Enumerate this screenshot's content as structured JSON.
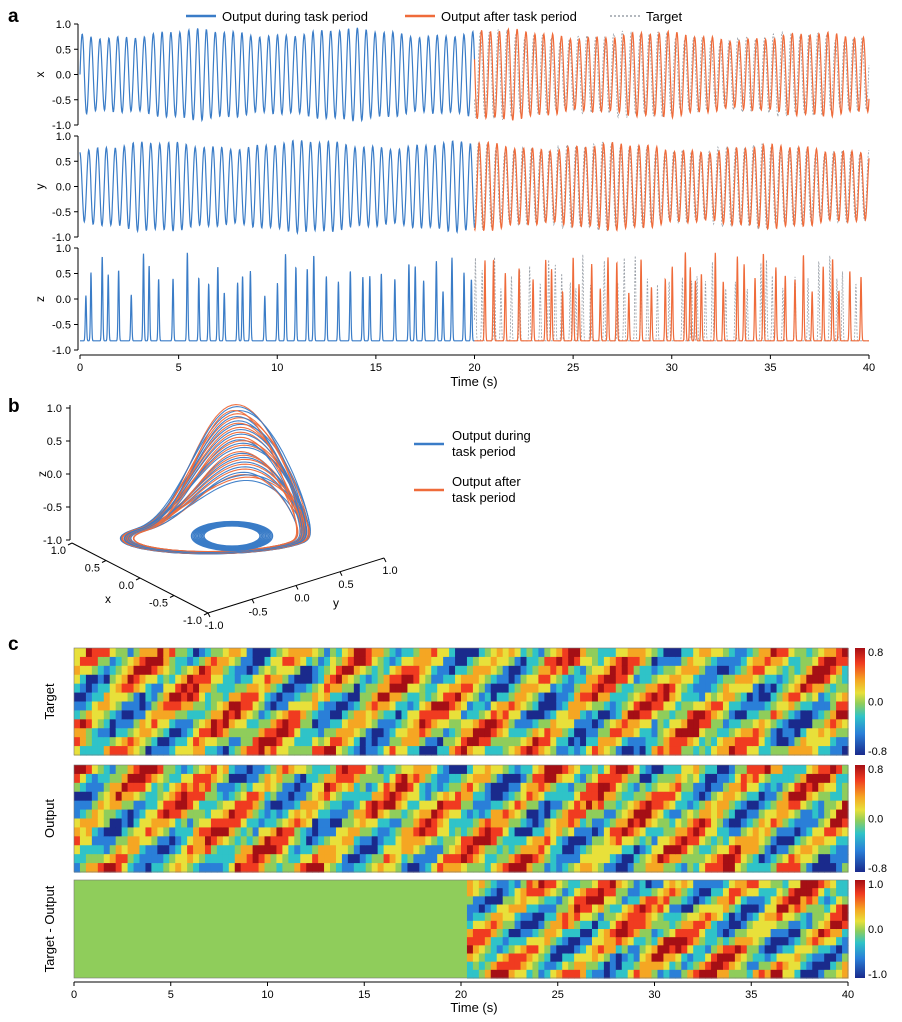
{
  "panels": {
    "a": "a",
    "b": "b",
    "c": "c"
  },
  "colors": {
    "during": "#3a7cc7",
    "after": "#ef6b3a",
    "target": "#9aa0a8",
    "flat": "#8fcd5b"
  },
  "chart_data": [
    {
      "panel": "a",
      "type": "line",
      "legend": {
        "placement": "top-center",
        "entries": [
          "Output during task period",
          "Output after task period",
          "Target"
        ]
      },
      "xlabel": "Time (s)",
      "xlim": [
        0,
        40
      ],
      "xticks": [
        0,
        5,
        10,
        15,
        20,
        25,
        30,
        35,
        40
      ],
      "switch_time": 20,
      "subplots": [
        {
          "ylabel": "x",
          "ylim": [
            -1.0,
            1.0
          ],
          "yticks": [
            "1.0",
            "0.5",
            "0.0",
            "-0.5",
            "-1.0"
          ],
          "description_values": {
            "min": -0.82,
            "max": 0.82,
            "oscillation_period_s": 0.45
          }
        },
        {
          "ylabel": "y",
          "ylim": [
            -1.0,
            1.0
          ],
          "yticks": [
            "1.0",
            "0.5",
            "0.0",
            "-0.5",
            "-1.0"
          ],
          "description_values": {
            "min": -0.82,
            "max": 0.82,
            "oscillation_period_s": 0.45
          }
        },
        {
          "ylabel": "z",
          "ylim": [
            -1.0,
            1.0
          ],
          "yticks": [
            "1.0",
            "0.5",
            "0.0",
            "-0.5",
            "-1.0"
          ],
          "description_values": {
            "baseline": -0.82,
            "spike_max": 0.92
          }
        }
      ],
      "series": [
        {
          "name": "Output during task period",
          "t_range": [
            0,
            20
          ]
        },
        {
          "name": "Output after task period",
          "t_range": [
            20,
            40
          ]
        },
        {
          "name": "Target",
          "t_range": [
            20,
            40
          ]
        }
      ]
    },
    {
      "panel": "b",
      "type": "line",
      "projection": "3d",
      "xlabel": "x",
      "ylabel": "y",
      "zlabel": "z",
      "xlim": [
        -1.0,
        1.0
      ],
      "ylim": [
        -1.0,
        1.0
      ],
      "zlim": [
        -1.0,
        1.0
      ],
      "xticks": [
        "1.0",
        "0.5",
        "0.0",
        "-0.5",
        "-1.0"
      ],
      "yticks": [
        "-1.0",
        "-0.5",
        "0.0",
        "0.5",
        "1.0"
      ],
      "zticks": [
        "1.0",
        "0.5",
        "0.0",
        "-0.5",
        "-1.0"
      ],
      "legend": {
        "placement": "right",
        "entries": [
          [
            "Output during",
            "task period"
          ],
          [
            "Output after",
            "task period"
          ]
        ]
      }
    },
    {
      "panel": "c",
      "type": "heatmap",
      "xlabel": "Time (s)",
      "xlim": [
        0,
        40
      ],
      "xticks": [
        0,
        5,
        10,
        15,
        20,
        25,
        30,
        35,
        40
      ],
      "switch_time": 20,
      "rows": [
        {
          "ylabel": "Target",
          "clim": [
            -0.8,
            0.8
          ],
          "cticks": [
            "0.8",
            "0.0",
            "-0.8"
          ]
        },
        {
          "ylabel": "Output",
          "clim": [
            -0.8,
            0.8
          ],
          "cticks": [
            "0.8",
            "0.0",
            "-0.8"
          ]
        },
        {
          "ylabel": "Target - Output",
          "clim": [
            -1.0,
            1.0
          ],
          "cticks": [
            "1.0",
            "0.0",
            "-1.0"
          ]
        }
      ]
    }
  ]
}
